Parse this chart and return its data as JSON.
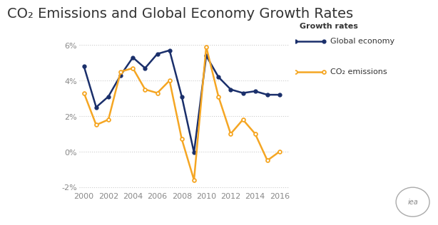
{
  "title": "CO₂ Emissions and Global Economy Growth Rates",
  "years": [
    2000,
    2001,
    2002,
    2003,
    2004,
    2005,
    2006,
    2007,
    2008,
    2009,
    2010,
    2011,
    2012,
    2013,
    2014,
    2015,
    2016
  ],
  "global_economy": [
    4.8,
    2.5,
    3.1,
    4.3,
    5.3,
    4.7,
    5.5,
    5.7,
    3.1,
    -0.05,
    5.4,
    4.2,
    3.5,
    3.3,
    3.4,
    3.2,
    3.2
  ],
  "co2_emissions": [
    3.3,
    1.5,
    1.8,
    4.5,
    4.7,
    3.5,
    3.3,
    4.0,
    0.7,
    -1.6,
    5.9,
    3.1,
    1.0,
    1.8,
    1.0,
    -0.5,
    0.0
  ],
  "global_economy_color": "#1a2f6b",
  "co2_emissions_color": "#f5a623",
  "ylim": [
    -2.2,
    6.5
  ],
  "yticks": [
    -2,
    0,
    2,
    4,
    6
  ],
  "ytick_labels": [
    "-2%",
    "0%",
    "2%",
    "4%",
    "6%"
  ],
  "xticks": [
    2000,
    2002,
    2004,
    2006,
    2008,
    2010,
    2012,
    2014,
    2016
  ],
  "legend_title": "Growth rates",
  "legend_label_economy": "Global economy",
  "legend_label_co2": "CO₂ emissions",
  "background_color": "#ffffff",
  "grid_color": "#cccccc",
  "iea_logo_color": "#888888",
  "tick_color": "#888888",
  "title_fontsize": 14,
  "axis_fontsize": 8
}
